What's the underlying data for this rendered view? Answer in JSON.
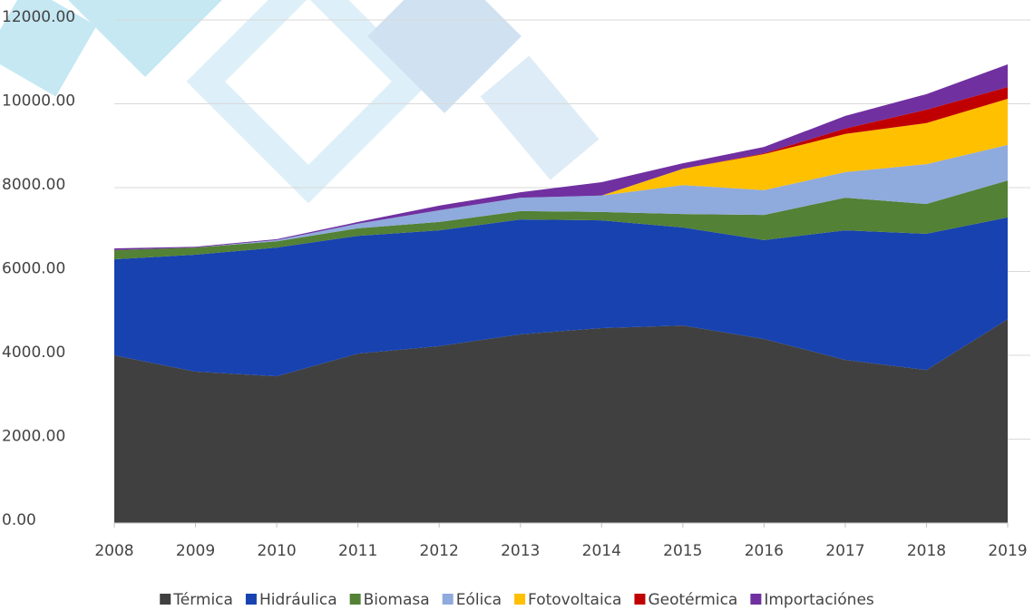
{
  "chart_data": {
    "type": "stacked-area",
    "categories": [
      "2008",
      "2009",
      "2010",
      "2011",
      "2012",
      "2013",
      "2014",
      "2015",
      "2016",
      "2017",
      "2018",
      "2019"
    ],
    "series": [
      {
        "name": "Térmica",
        "color": "#404040",
        "values": [
          4000,
          3610,
          3500,
          4040,
          4220,
          4500,
          4650,
          4710,
          4390,
          3890,
          3650,
          4860
        ]
      },
      {
        "name": "Hidráulica",
        "color": "#1742b0",
        "values": [
          2290,
          2790,
          3070,
          2810,
          2760,
          2740,
          2570,
          2340,
          2360,
          3090,
          3250,
          2430
        ]
      },
      {
        "name": "Biomasa",
        "color": "#538135",
        "values": [
          220,
          170,
          150,
          180,
          200,
          200,
          200,
          320,
          600,
          780,
          710,
          880
        ]
      },
      {
        "name": "Eólica",
        "color": "#8faadc",
        "values": [
          0,
          0,
          30,
          110,
          280,
          320,
          390,
          690,
          590,
          610,
          950,
          850
        ]
      },
      {
        "name": "Fotovoltaica",
        "color": "#ffc000",
        "values": [
          0,
          0,
          0,
          0,
          0,
          0,
          0,
          390,
          860,
          910,
          980,
          1100
        ]
      },
      {
        "name": "Geotérmica",
        "color": "#c00000",
        "values": [
          0,
          0,
          0,
          0,
          0,
          0,
          0,
          0,
          20,
          130,
          320,
          280
        ]
      },
      {
        "name": "Importaciónes",
        "color": "#7030a0",
        "values": [
          40,
          20,
          20,
          40,
          110,
          130,
          320,
          130,
          150,
          300,
          370,
          540
        ]
      }
    ],
    "ylim": [
      0,
      12000
    ],
    "yticks": [
      {
        "value": 0,
        "label": "0.00"
      },
      {
        "value": 2000,
        "label": "2000.00"
      },
      {
        "value": 4000,
        "label": "4000.00"
      },
      {
        "value": 6000,
        "label": "6000.00"
      },
      {
        "value": 8000,
        "label": "8000.00"
      },
      {
        "value": 10000,
        "label": "10000.00"
      },
      {
        "value": 12000,
        "label": "12000.00"
      }
    ],
    "grid": true
  }
}
